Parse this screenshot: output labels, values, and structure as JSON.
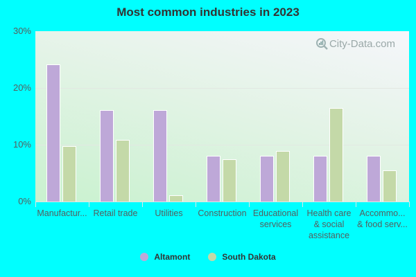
{
  "chart_data": {
    "type": "bar",
    "title": "Most common industries in 2023",
    "xlabel": "",
    "ylabel": "",
    "ylim": [
      0,
      30
    ],
    "yticks": [
      "0%",
      "10%",
      "20%",
      "30%"
    ],
    "grid": true,
    "legend_position": "bottom",
    "categories": [
      "Manufactur...",
      "Retail trade",
      "Utilities",
      "Construction",
      "Educational\nservices",
      "Health care\n& social\nassistance",
      "Accommo...\n& food serv..."
    ],
    "series": [
      {
        "name": "Altamont",
        "color": "#bea8d8",
        "values": [
          24.1,
          16.1,
          16.1,
          8.0,
          8.0,
          8.0,
          8.0
        ]
      },
      {
        "name": "South Dakota",
        "color": "#c4d9a8",
        "values": [
          9.8,
          10.9,
          1.1,
          7.4,
          8.9,
          16.5,
          5.5
        ]
      }
    ]
  },
  "watermark": "City-Data.com",
  "legend": [
    {
      "label": "Altamont",
      "color": "#bea8d8"
    },
    {
      "label": "South Dakota",
      "color": "#c4d9a8"
    }
  ]
}
